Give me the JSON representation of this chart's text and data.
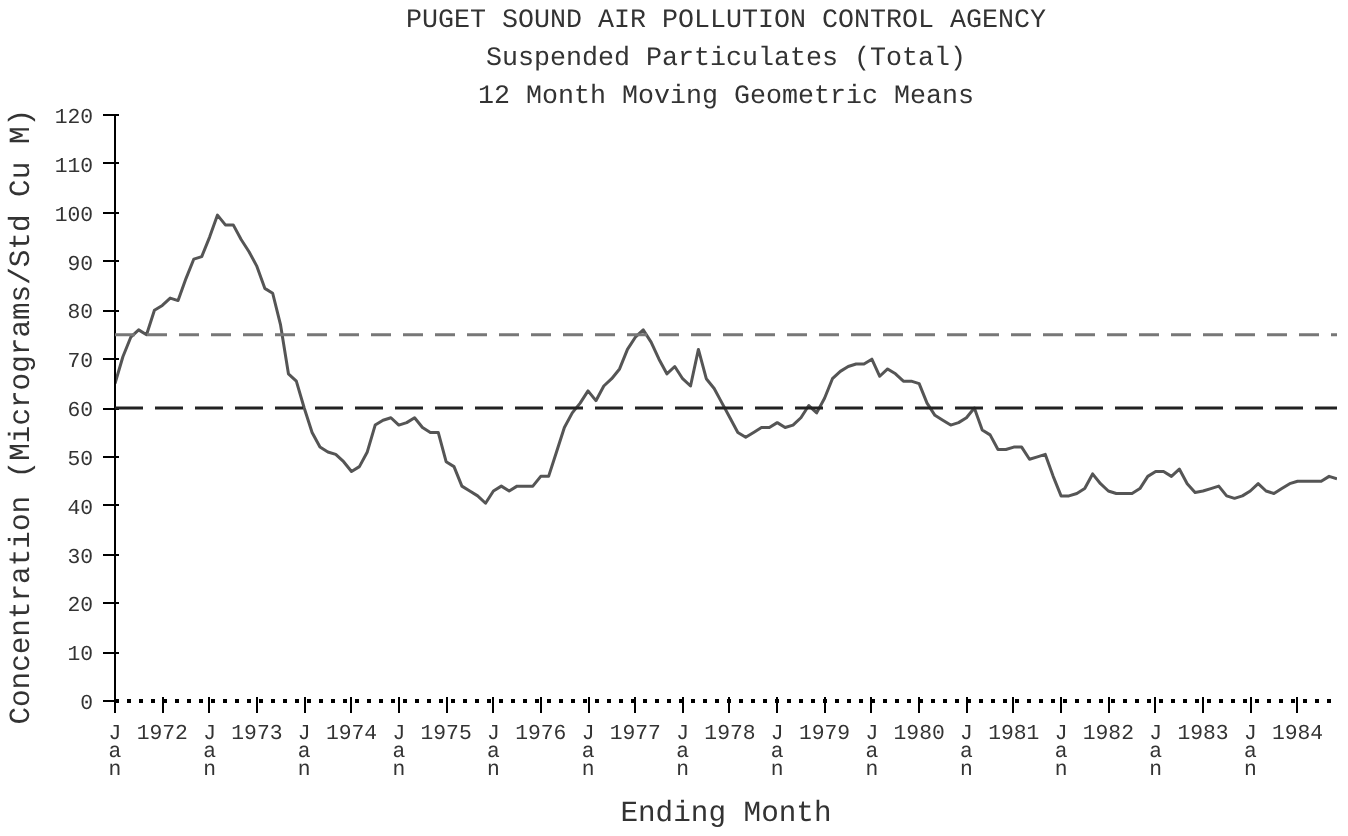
{
  "chart_data": {
    "type": "line",
    "title": "PUGET SOUND AIR POLLUTION CONTROL AGENCY",
    "subtitle": "Suspended Particulates (Total)",
    "annotations": [
      "12 Month Moving Geometric Means"
    ],
    "xlabel": "Ending Month",
    "ylabel": "Concentration  (Micrograms/Std Cu M)",
    "xlim": [
      "1972-01",
      "1984-12"
    ],
    "xticks": [
      {
        "value": "1972-01",
        "label": "Jan"
      },
      {
        "value": "1972-07",
        "label": "1972"
      },
      {
        "value": "1973-01",
        "label": "Jan"
      },
      {
        "value": "1973-07",
        "label": "1973"
      },
      {
        "value": "1974-01",
        "label": "Jan"
      },
      {
        "value": "1974-07",
        "label": "1974"
      },
      {
        "value": "1975-01",
        "label": "Jan"
      },
      {
        "value": "1975-07",
        "label": "1975"
      },
      {
        "value": "1976-01",
        "label": "Jan"
      },
      {
        "value": "1976-07",
        "label": "1976"
      },
      {
        "value": "1977-01",
        "label": "Jan"
      },
      {
        "value": "1977-07",
        "label": "1977"
      },
      {
        "value": "1978-01",
        "label": "Jan"
      },
      {
        "value": "1978-07",
        "label": "1978"
      },
      {
        "value": "1979-01",
        "label": "Jan"
      },
      {
        "value": "1979-07",
        "label": "1979"
      },
      {
        "value": "1980-01",
        "label": "Jan"
      },
      {
        "value": "1980-07",
        "label": "1980"
      },
      {
        "value": "1981-01",
        "label": "Jan"
      },
      {
        "value": "1981-07",
        "label": "1981"
      },
      {
        "value": "1982-01",
        "label": "Jan"
      },
      {
        "value": "1982-07",
        "label": "1982"
      },
      {
        "value": "1983-01",
        "label": "Jan"
      },
      {
        "value": "1983-07",
        "label": "1983"
      },
      {
        "value": "1984-01",
        "label": "Jan"
      },
      {
        "value": "1984-07",
        "label": "1984"
      }
    ],
    "ylim": [
      0,
      120
    ],
    "yticks": [
      0,
      10,
      20,
      30,
      40,
      50,
      60,
      70,
      80,
      90,
      100,
      110,
      120
    ],
    "grid": false,
    "line_style": "solid",
    "marker": "none",
    "ref_lines": [
      {
        "axis": "y",
        "value": 75,
        "color": "#777777",
        "line_style": "dashed"
      },
      {
        "axis": "y",
        "value": 60,
        "color": "#222222",
        "line_style": "dashed"
      }
    ],
    "x": [
      "1972-01",
      "1972-02",
      "1972-03",
      "1972-04",
      "1972-05",
      "1972-06",
      "1972-07",
      "1972-08",
      "1972-09",
      "1972-10",
      "1972-11",
      "1972-12",
      "1973-01",
      "1973-02",
      "1973-03",
      "1973-04",
      "1973-05",
      "1973-06",
      "1973-07",
      "1973-08",
      "1973-09",
      "1973-10",
      "1973-11",
      "1973-12",
      "1974-01",
      "1974-02",
      "1974-03",
      "1974-04",
      "1974-05",
      "1974-06",
      "1974-07",
      "1974-08",
      "1974-09",
      "1974-10",
      "1974-11",
      "1974-12",
      "1975-01",
      "1975-02",
      "1975-03",
      "1975-04",
      "1975-05",
      "1975-06",
      "1975-07",
      "1975-08",
      "1975-09",
      "1975-10",
      "1975-11",
      "1975-12",
      "1976-01",
      "1976-02",
      "1976-03",
      "1976-04",
      "1976-05",
      "1976-06",
      "1976-07",
      "1976-08",
      "1976-09",
      "1976-10",
      "1976-11",
      "1976-12",
      "1977-01",
      "1977-02",
      "1977-03",
      "1977-04",
      "1977-05",
      "1977-06",
      "1977-07",
      "1977-08",
      "1977-09",
      "1977-10",
      "1977-11",
      "1977-12",
      "1978-01",
      "1978-02",
      "1978-03",
      "1978-04",
      "1978-05",
      "1978-06",
      "1978-07",
      "1978-08",
      "1978-09",
      "1978-10",
      "1978-11",
      "1978-12",
      "1979-01",
      "1979-02",
      "1979-03",
      "1979-04",
      "1979-05",
      "1979-06",
      "1979-07",
      "1979-08",
      "1979-09",
      "1979-10",
      "1979-11",
      "1979-12",
      "1980-01",
      "1980-02",
      "1980-03",
      "1980-04",
      "1980-05",
      "1980-06",
      "1980-07",
      "1980-08",
      "1980-09",
      "1980-10",
      "1980-11",
      "1980-12",
      "1981-01",
      "1981-02",
      "1981-03",
      "1981-04",
      "1981-05",
      "1981-06",
      "1981-07",
      "1981-08",
      "1981-09",
      "1981-10",
      "1981-11",
      "1981-12",
      "1982-01",
      "1982-02",
      "1982-03",
      "1982-04",
      "1982-05",
      "1982-06",
      "1982-07",
      "1982-08",
      "1982-09",
      "1982-10",
      "1982-11",
      "1982-12",
      "1983-01",
      "1983-02",
      "1983-03",
      "1983-04",
      "1983-05",
      "1983-06",
      "1983-07",
      "1983-08",
      "1983-09",
      "1983-10",
      "1983-11",
      "1983-12",
      "1984-01",
      "1984-02",
      "1984-03",
      "1984-04",
      "1984-05",
      "1984-06",
      "1984-07",
      "1984-08",
      "1984-09",
      "1984-10",
      "1984-11",
      "1984-12"
    ],
    "series": [
      {
        "color": "#555555",
        "values": [
          65,
          70.5,
          74.5,
          76,
          75,
          80,
          81,
          82.5,
          82,
          86.5,
          90.5,
          91,
          95,
          99.5,
          97.5,
          97.5,
          94.5,
          92,
          89,
          84.5,
          83.5,
          77,
          67,
          65.5,
          60,
          55,
          52,
          51,
          50.5,
          49,
          47,
          48,
          51,
          56.5,
          57.5,
          58,
          56.5,
          57,
          58,
          56,
          55,
          55,
          49,
          48,
          44,
          43,
          42,
          40.5,
          43,
          44,
          43,
          44,
          44,
          44,
          46,
          46,
          51,
          56,
          59,
          61,
          63.5,
          61.5,
          64.5,
          66,
          68,
          72,
          74.5,
          76,
          73.5,
          70,
          67,
          68.5,
          66,
          64.5,
          72,
          66,
          64,
          61,
          58,
          55,
          54,
          55,
          56,
          56,
          57,
          56,
          56.5,
          58,
          60.5,
          59,
          62,
          66,
          67.5,
          68.5,
          69,
          69,
          70,
          66.5,
          68,
          67,
          65.5,
          65.5,
          65,
          61,
          58.5,
          57.5,
          56.5,
          57,
          58,
          60,
          55.5,
          54.5,
          51.5,
          51.5,
          52,
          52,
          49.5,
          50,
          50.5,
          46,
          42,
          42,
          42.5,
          43.5,
          46.5,
          44.5,
          43,
          42.5,
          42.5,
          42.5,
          43.5,
          46,
          47,
          47,
          46,
          47.5,
          44.5,
          42.7,
          43,
          43.5,
          44,
          42,
          41.5,
          42,
          43,
          44.5,
          43,
          42.5,
          43.5,
          44.5,
          45,
          45,
          45,
          45,
          46,
          45.5
        ]
      }
    ]
  }
}
